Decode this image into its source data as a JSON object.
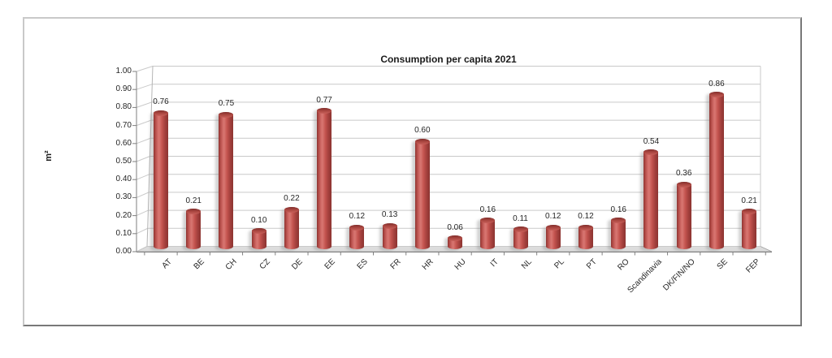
{
  "chart_data": {
    "type": "bar",
    "style": "3d-cylinder",
    "title": "Consumption per capita 2021",
    "ylabel": "m²",
    "xlabel": "",
    "categories": [
      "AT",
      "BE",
      "CH",
      "CZ",
      "DE",
      "EE",
      "ES",
      "FR",
      "HR",
      "HU",
      "IT",
      "NL",
      "PL",
      "PT",
      "RO",
      "Scandinavia",
      "DK/FIN/NO",
      "SE",
      "FEP"
    ],
    "values": [
      0.76,
      0.21,
      0.75,
      0.1,
      0.22,
      0.77,
      0.12,
      0.13,
      0.6,
      0.06,
      0.16,
      0.11,
      0.12,
      0.12,
      0.16,
      0.54,
      0.36,
      0.86,
      0.21
    ],
    "value_labels": [
      "0.76",
      "0.21",
      "0.75",
      "0.10",
      "0.22",
      "0.77",
      "0.12",
      "0.13",
      "0.60",
      "0.06",
      "0.16",
      "0.11",
      "0.12",
      "0.12",
      "0.16",
      "0.54",
      "0.36",
      "0.86",
      "0.21"
    ],
    "y_ticks": [
      "1.00",
      "0.90",
      "0.80",
      "0.70",
      "0.60",
      "0.50",
      "0.40",
      "0.30",
      "0.20",
      "0.10",
      "0.00"
    ],
    "ylim": [
      0,
      1
    ],
    "grid": true,
    "legend": "none",
    "bar_color": "#c0504d",
    "gridline_color": "#c9c9c9",
    "axis_color": "#7f7f7f",
    "floor_color": "#dcdcdc"
  }
}
